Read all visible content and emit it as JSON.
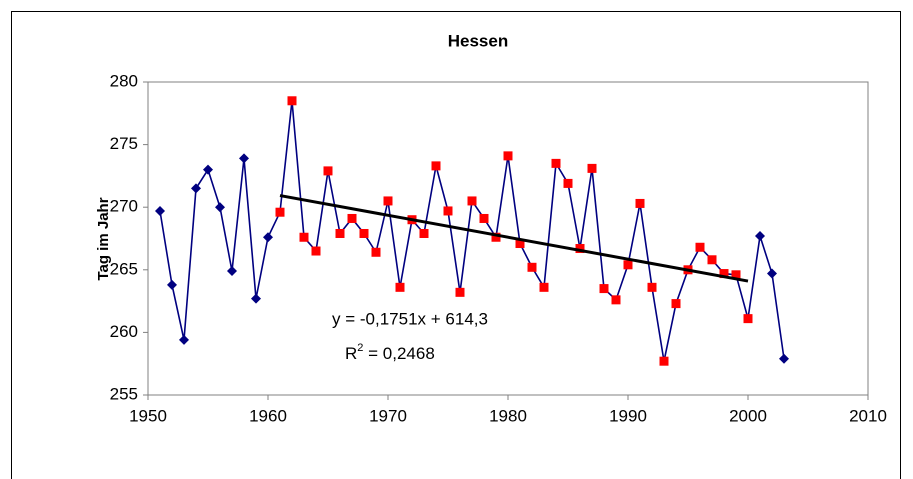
{
  "chart_data": {
    "type": "line",
    "title": "Hessen",
    "ylabel": "Tag im Jahr",
    "x": [
      1951,
      1952,
      1953,
      1954,
      1955,
      1956,
      1957,
      1958,
      1959,
      1960,
      1961,
      1962,
      1963,
      1964,
      1965,
      1966,
      1967,
      1968,
      1969,
      1970,
      1971,
      1972,
      1973,
      1974,
      1975,
      1976,
      1977,
      1978,
      1979,
      1980,
      1981,
      1982,
      1983,
      1984,
      1985,
      1986,
      1987,
      1988,
      1989,
      1990,
      1991,
      1992,
      1993,
      1994,
      1995,
      1996,
      1997,
      1998,
      1999,
      2000,
      2001,
      2002,
      2003
    ],
    "series": [
      {
        "color": "#000080",
        "values": [
          269.7,
          263.8,
          259.4,
          271.5,
          273.0,
          270.0,
          264.9,
          273.9,
          262.7,
          267.6,
          269.6,
          278.5,
          267.6,
          266.5,
          272.9,
          267.9,
          269.1,
          267.9,
          266.4,
          270.5,
          263.6,
          269.0,
          267.9,
          273.3,
          269.7,
          263.2,
          270.5,
          269.1,
          267.6,
          274.1,
          267.1,
          265.2,
          263.6,
          273.5,
          271.9,
          266.7,
          273.1,
          263.5,
          262.6,
          265.4,
          270.3,
          263.6,
          257.7,
          262.3,
          265.0,
          266.8,
          265.8,
          264.7,
          264.6,
          261.1,
          267.7,
          264.7,
          257.9
        ],
        "point_colors": [
          "#000080",
          "#000080",
          "#000080",
          "#000080",
          "#000080",
          "#000080",
          "#000080",
          "#000080",
          "#000080",
          "#000080",
          "#ff0000",
          "#ff0000",
          "#ff0000",
          "#ff0000",
          "#ff0000",
          "#ff0000",
          "#ff0000",
          "#ff0000",
          "#ff0000",
          "#ff0000",
          "#ff0000",
          "#ff0000",
          "#ff0000",
          "#ff0000",
          "#ff0000",
          "#ff0000",
          "#ff0000",
          "#ff0000",
          "#ff0000",
          "#ff0000",
          "#ff0000",
          "#ff0000",
          "#ff0000",
          "#ff0000",
          "#ff0000",
          "#ff0000",
          "#ff0000",
          "#ff0000",
          "#ff0000",
          "#ff0000",
          "#ff0000",
          "#ff0000",
          "#ff0000",
          "#ff0000",
          "#ff0000",
          "#ff0000",
          "#ff0000",
          "#ff0000",
          "#ff0000",
          "#ff0000",
          "#000080",
          "#000080",
          "#000080"
        ],
        "point_shapes": [
          "diamond",
          "diamond",
          "diamond",
          "diamond",
          "diamond",
          "diamond",
          "diamond",
          "diamond",
          "diamond",
          "diamond",
          "square",
          "square",
          "square",
          "square",
          "square",
          "square",
          "square",
          "square",
          "square",
          "square",
          "square",
          "square",
          "square",
          "square",
          "square",
          "square",
          "square",
          "square",
          "square",
          "square",
          "square",
          "square",
          "square",
          "square",
          "square",
          "square",
          "square",
          "square",
          "square",
          "square",
          "square",
          "square",
          "square",
          "square",
          "square",
          "square",
          "square",
          "square",
          "square",
          "square",
          "diamond",
          "diamond",
          "diamond"
        ]
      }
    ],
    "trendline": {
      "slope": -0.1751,
      "intercept": 614.3,
      "x": [
        1961,
        2000
      ],
      "color": "#000000",
      "equation": "y = -0,1751x + 614,3",
      "r2_symbol": "R",
      "r2_exponent": "2",
      "r2_text": " = 0,2468"
    },
    "xlim": [
      1950,
      2010
    ],
    "xticks": [
      1950,
      1960,
      1970,
      1980,
      1990,
      2000,
      2010
    ],
    "ylim": [
      255,
      280
    ],
    "yticks": [
      255,
      260,
      265,
      270,
      275,
      280
    ],
    "grid": false
  }
}
